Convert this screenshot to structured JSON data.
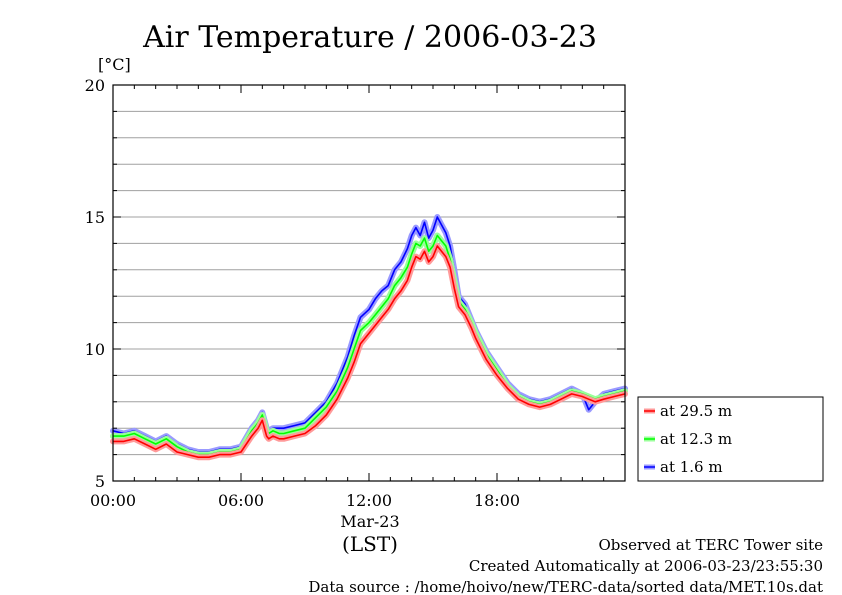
{
  "chart_data": {
    "type": "line",
    "title": "Air Temperature / 2006-03-23",
    "ylabel": "[°C]",
    "xlabel": "(LST)",
    "date_label": "Mar-23",
    "ylim": [
      5,
      20
    ],
    "xlim": [
      0,
      24
    ],
    "y_ticks": [
      5,
      10,
      15,
      20
    ],
    "x_ticks": [
      {
        "value": 0,
        "label": "00:00"
      },
      {
        "value": 6,
        "label": "06:00"
      },
      {
        "value": 12,
        "label": "12:00"
      },
      {
        "value": 18,
        "label": "18:00"
      }
    ],
    "grid": true,
    "legend_position": "right",
    "series": [
      {
        "name": "at 29.5 m",
        "color": "#ff0000",
        "x": [
          0,
          0.5,
          1,
          1.5,
          2,
          2.5,
          3,
          3.5,
          4,
          4.5,
          5,
          5.5,
          6,
          6.5,
          6.8,
          7,
          7.2,
          7.3,
          7.5,
          7.8,
          8,
          8.5,
          9,
          9.5,
          10,
          10.5,
          11,
          11.3,
          11.6,
          12,
          12.3,
          12.6,
          12.9,
          13.2,
          13.5,
          13.8,
          14,
          14.2,
          14.4,
          14.6,
          14.8,
          15,
          15.2,
          15.4,
          15.6,
          15.8,
          16,
          16.2,
          16.5,
          16.8,
          17,
          17.5,
          18,
          18.5,
          19,
          19.5,
          20,
          20.5,
          21,
          21.5,
          22,
          22.3,
          22.6,
          23,
          23.5,
          24
        ],
        "values": [
          6.5,
          6.5,
          6.6,
          6.4,
          6.2,
          6.4,
          6.1,
          6.0,
          5.9,
          5.9,
          6.0,
          6.0,
          6.1,
          6.7,
          7.0,
          7.3,
          6.7,
          6.6,
          6.7,
          6.6,
          6.6,
          6.7,
          6.8,
          7.1,
          7.5,
          8.1,
          8.9,
          9.5,
          10.2,
          10.6,
          10.9,
          11.2,
          11.5,
          11.9,
          12.2,
          12.6,
          13.1,
          13.5,
          13.4,
          13.7,
          13.3,
          13.5,
          13.9,
          13.7,
          13.5,
          13.1,
          12.3,
          11.6,
          11.3,
          10.8,
          10.4,
          9.6,
          9.0,
          8.5,
          8.1,
          7.9,
          7.8,
          7.9,
          8.1,
          8.3,
          8.2,
          8.1,
          8.0,
          8.1,
          8.2,
          8.3
        ]
      },
      {
        "name": "at 12.3 m",
        "color": "#00ff00",
        "x": [
          0,
          0.5,
          1,
          1.5,
          2,
          2.5,
          3,
          3.5,
          4,
          4.5,
          5,
          5.5,
          6,
          6.5,
          6.8,
          7,
          7.2,
          7.3,
          7.5,
          7.8,
          8,
          8.5,
          9,
          9.5,
          10,
          10.5,
          11,
          11.3,
          11.6,
          12,
          12.3,
          12.6,
          12.9,
          13.2,
          13.5,
          13.8,
          14,
          14.2,
          14.4,
          14.6,
          14.8,
          15,
          15.2,
          15.4,
          15.6,
          15.8,
          16,
          16.2,
          16.5,
          16.8,
          17,
          17.5,
          18,
          18.5,
          19,
          19.5,
          20,
          20.5,
          21,
          21.5,
          22,
          22.3,
          22.6,
          23,
          23.5,
          24
        ],
        "values": [
          6.7,
          6.7,
          6.8,
          6.6,
          6.4,
          6.6,
          6.3,
          6.1,
          6.0,
          6.0,
          6.1,
          6.1,
          6.2,
          6.9,
          7.2,
          7.5,
          6.9,
          6.8,
          6.9,
          6.8,
          6.8,
          6.9,
          7.0,
          7.4,
          7.8,
          8.4,
          9.3,
          10.0,
          10.7,
          11.0,
          11.3,
          11.6,
          11.9,
          12.4,
          12.7,
          13.1,
          13.6,
          14.0,
          13.9,
          14.2,
          13.7,
          13.9,
          14.3,
          14.1,
          13.9,
          13.4,
          12.6,
          11.8,
          11.5,
          11.0,
          10.6,
          9.8,
          9.2,
          8.6,
          8.2,
          8.0,
          7.9,
          8.0,
          8.2,
          8.4,
          8.3,
          8.2,
          8.1,
          8.2,
          8.3,
          8.4
        ]
      },
      {
        "name": "at 1.6 m",
        "color": "#0000ff",
        "x": [
          0,
          0.5,
          1,
          1.5,
          2,
          2.5,
          3,
          3.5,
          4,
          4.5,
          5,
          5.5,
          6,
          6.5,
          6.8,
          7,
          7.2,
          7.3,
          7.5,
          7.8,
          8,
          8.5,
          9,
          9.5,
          10,
          10.5,
          11,
          11.3,
          11.6,
          12,
          12.3,
          12.6,
          12.9,
          13.2,
          13.5,
          13.8,
          14,
          14.2,
          14.4,
          14.6,
          14.8,
          15,
          15.2,
          15.4,
          15.6,
          15.8,
          16,
          16.2,
          16.5,
          16.8,
          17,
          17.5,
          18,
          18.5,
          19,
          19.5,
          20,
          20.5,
          21,
          21.5,
          22,
          22.3,
          22.6,
          23,
          23.5,
          24
        ],
        "values": [
          6.9,
          6.8,
          6.9,
          6.7,
          6.5,
          6.7,
          6.4,
          6.2,
          6.1,
          6.1,
          6.2,
          6.2,
          6.3,
          7.0,
          7.3,
          7.6,
          7.0,
          6.9,
          7.0,
          7.0,
          7.0,
          7.1,
          7.2,
          7.6,
          8.0,
          8.7,
          9.7,
          10.5,
          11.2,
          11.5,
          11.9,
          12.2,
          12.4,
          13.0,
          13.3,
          13.8,
          14.3,
          14.6,
          14.3,
          14.8,
          14.2,
          14.5,
          15.0,
          14.7,
          14.4,
          13.9,
          13.0,
          12.0,
          11.7,
          11.1,
          10.7,
          9.9,
          9.3,
          8.7,
          8.3,
          8.1,
          8.0,
          8.1,
          8.3,
          8.5,
          8.3,
          7.7,
          8.0,
          8.3,
          8.4,
          8.5
        ]
      }
    ]
  },
  "footer": {
    "site": "Observed at TERC Tower site",
    "created": "Created Automatically at 2006-03-23/23:55:30",
    "source": "Data source : /home/hoivo/new/TERC-data/sorted  data/MET.10s.dat"
  }
}
